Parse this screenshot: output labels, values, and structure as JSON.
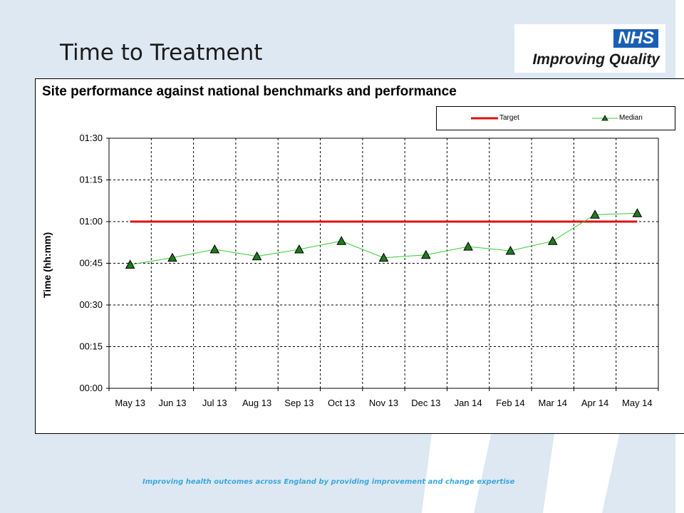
{
  "slide": {
    "title": "Time to Treatment",
    "logo": {
      "badge": "NHS",
      "text": "Improving Quality"
    },
    "footer": "Improving health outcomes across England by providing improvement and change expertise"
  },
  "colors": {
    "target": "#dd1111",
    "median": "#33cc33",
    "marker": "#1f7a1f",
    "accent": "#3aa8dc"
  },
  "chart_data": {
    "type": "line",
    "title": "Site performance against national  benchmarks and performance",
    "ylabel": "Time (hh:mm)",
    "xlabel": "",
    "ylim": [
      0,
      90
    ],
    "yticks": [
      0,
      15,
      30,
      45,
      60,
      75,
      90
    ],
    "ytick_labels": [
      "00:00",
      "00:15",
      "00:30",
      "00:45",
      "01:00",
      "01:15",
      "01:30"
    ],
    "categories": [
      "May 13",
      "Jun 13",
      "Jul 13",
      "Aug 13",
      "Sep 13",
      "Oct 13",
      "Nov 13",
      "Dec 13",
      "Jan 14",
      "Feb 14",
      "Mar 14",
      "Apr 14",
      "May 14"
    ],
    "grid": true,
    "legend_position": "top-right",
    "series": [
      {
        "name": "Target",
        "values": [
          60,
          60,
          60,
          60,
          60,
          60,
          60,
          60,
          60,
          60,
          60,
          60,
          60
        ]
      },
      {
        "name": "Median",
        "values": [
          44.5,
          47,
          50,
          47.5,
          50,
          53,
          47,
          48,
          51,
          49.5,
          53,
          62.5,
          63
        ]
      }
    ]
  }
}
